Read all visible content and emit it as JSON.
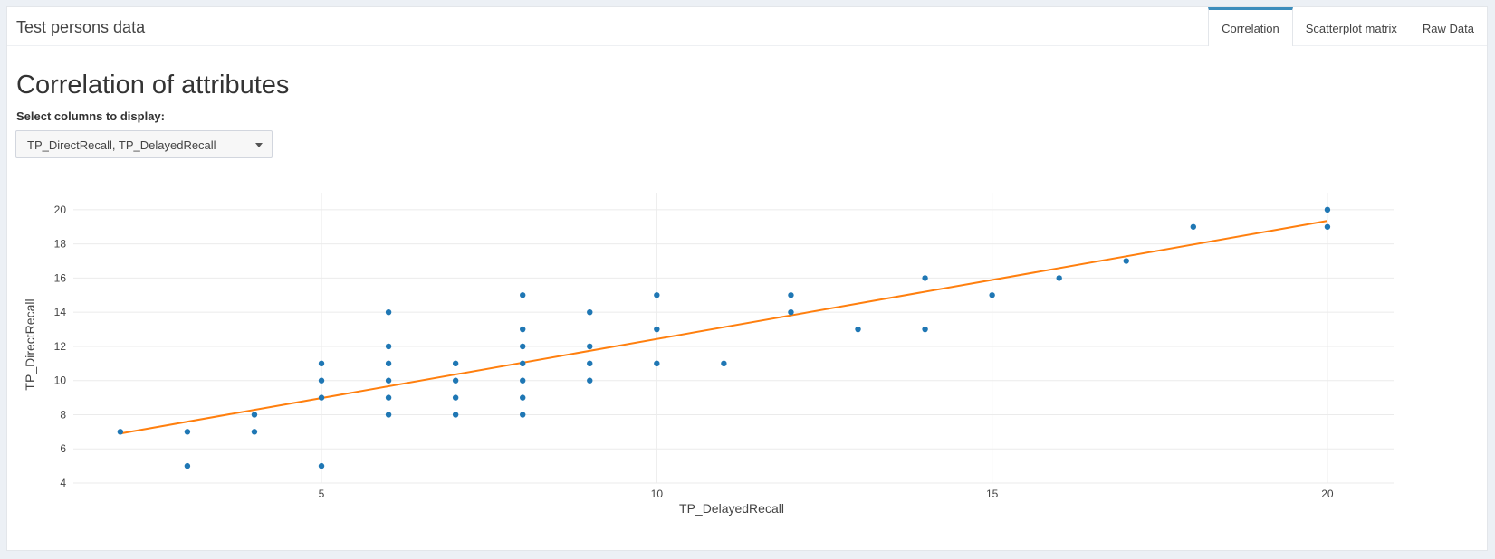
{
  "app": {
    "title": "Test persons data"
  },
  "tabs": [
    {
      "label": "Correlation",
      "active": true
    },
    {
      "label": "Scatterplot matrix",
      "active": false
    },
    {
      "label": "Raw Data",
      "active": false
    }
  ],
  "page": {
    "title": "Correlation of attributes"
  },
  "select": {
    "label": "Select columns to display:",
    "value": "TP_DirectRecall, TP_DelayedRecall"
  },
  "colors": {
    "point": "#1f77b4",
    "line": "#ff7f0e",
    "accent": "#3c8dbc"
  },
  "icons": {
    "select_caret": "chevron-down-icon"
  },
  "chart_data": {
    "type": "scatter",
    "xlabel": "TP_DelayedRecall",
    "ylabel": "TP_DirectRecall",
    "xlim": [
      1.3,
      21.0
    ],
    "ylim": [
      4,
      21.0
    ],
    "xticks": [
      5,
      10,
      15,
      20
    ],
    "yticks": [
      4,
      6,
      8,
      10,
      12,
      14,
      16,
      18,
      20
    ],
    "grid": true,
    "points": [
      [
        2,
        7
      ],
      [
        3,
        7
      ],
      [
        3,
        5
      ],
      [
        4,
        8
      ],
      [
        4,
        7
      ],
      [
        5,
        11
      ],
      [
        5,
        10
      ],
      [
        5,
        9
      ],
      [
        5,
        5
      ],
      [
        6,
        14
      ],
      [
        6,
        12
      ],
      [
        6,
        11
      ],
      [
        6,
        10
      ],
      [
        6,
        9
      ],
      [
        6,
        8
      ],
      [
        7,
        11
      ],
      [
        7,
        10
      ],
      [
        7,
        9
      ],
      [
        7,
        8
      ],
      [
        8,
        15
      ],
      [
        8,
        13
      ],
      [
        8,
        12
      ],
      [
        8,
        11
      ],
      [
        8,
        10
      ],
      [
        8,
        9
      ],
      [
        8,
        8
      ],
      [
        9,
        14
      ],
      [
        9,
        12
      ],
      [
        9,
        11
      ],
      [
        9,
        10
      ],
      [
        10,
        15
      ],
      [
        10,
        13
      ],
      [
        10,
        11
      ],
      [
        11,
        11
      ],
      [
        12,
        15
      ],
      [
        12,
        14
      ],
      [
        13,
        13
      ],
      [
        14,
        16
      ],
      [
        14,
        13
      ],
      [
        15,
        15
      ],
      [
        16,
        16
      ],
      [
        17,
        17
      ],
      [
        18,
        19
      ],
      [
        20,
        20
      ],
      [
        20,
        19
      ]
    ],
    "trendline": {
      "x": [
        2,
        20
      ],
      "y": [
        6.9,
        19.35
      ]
    }
  }
}
